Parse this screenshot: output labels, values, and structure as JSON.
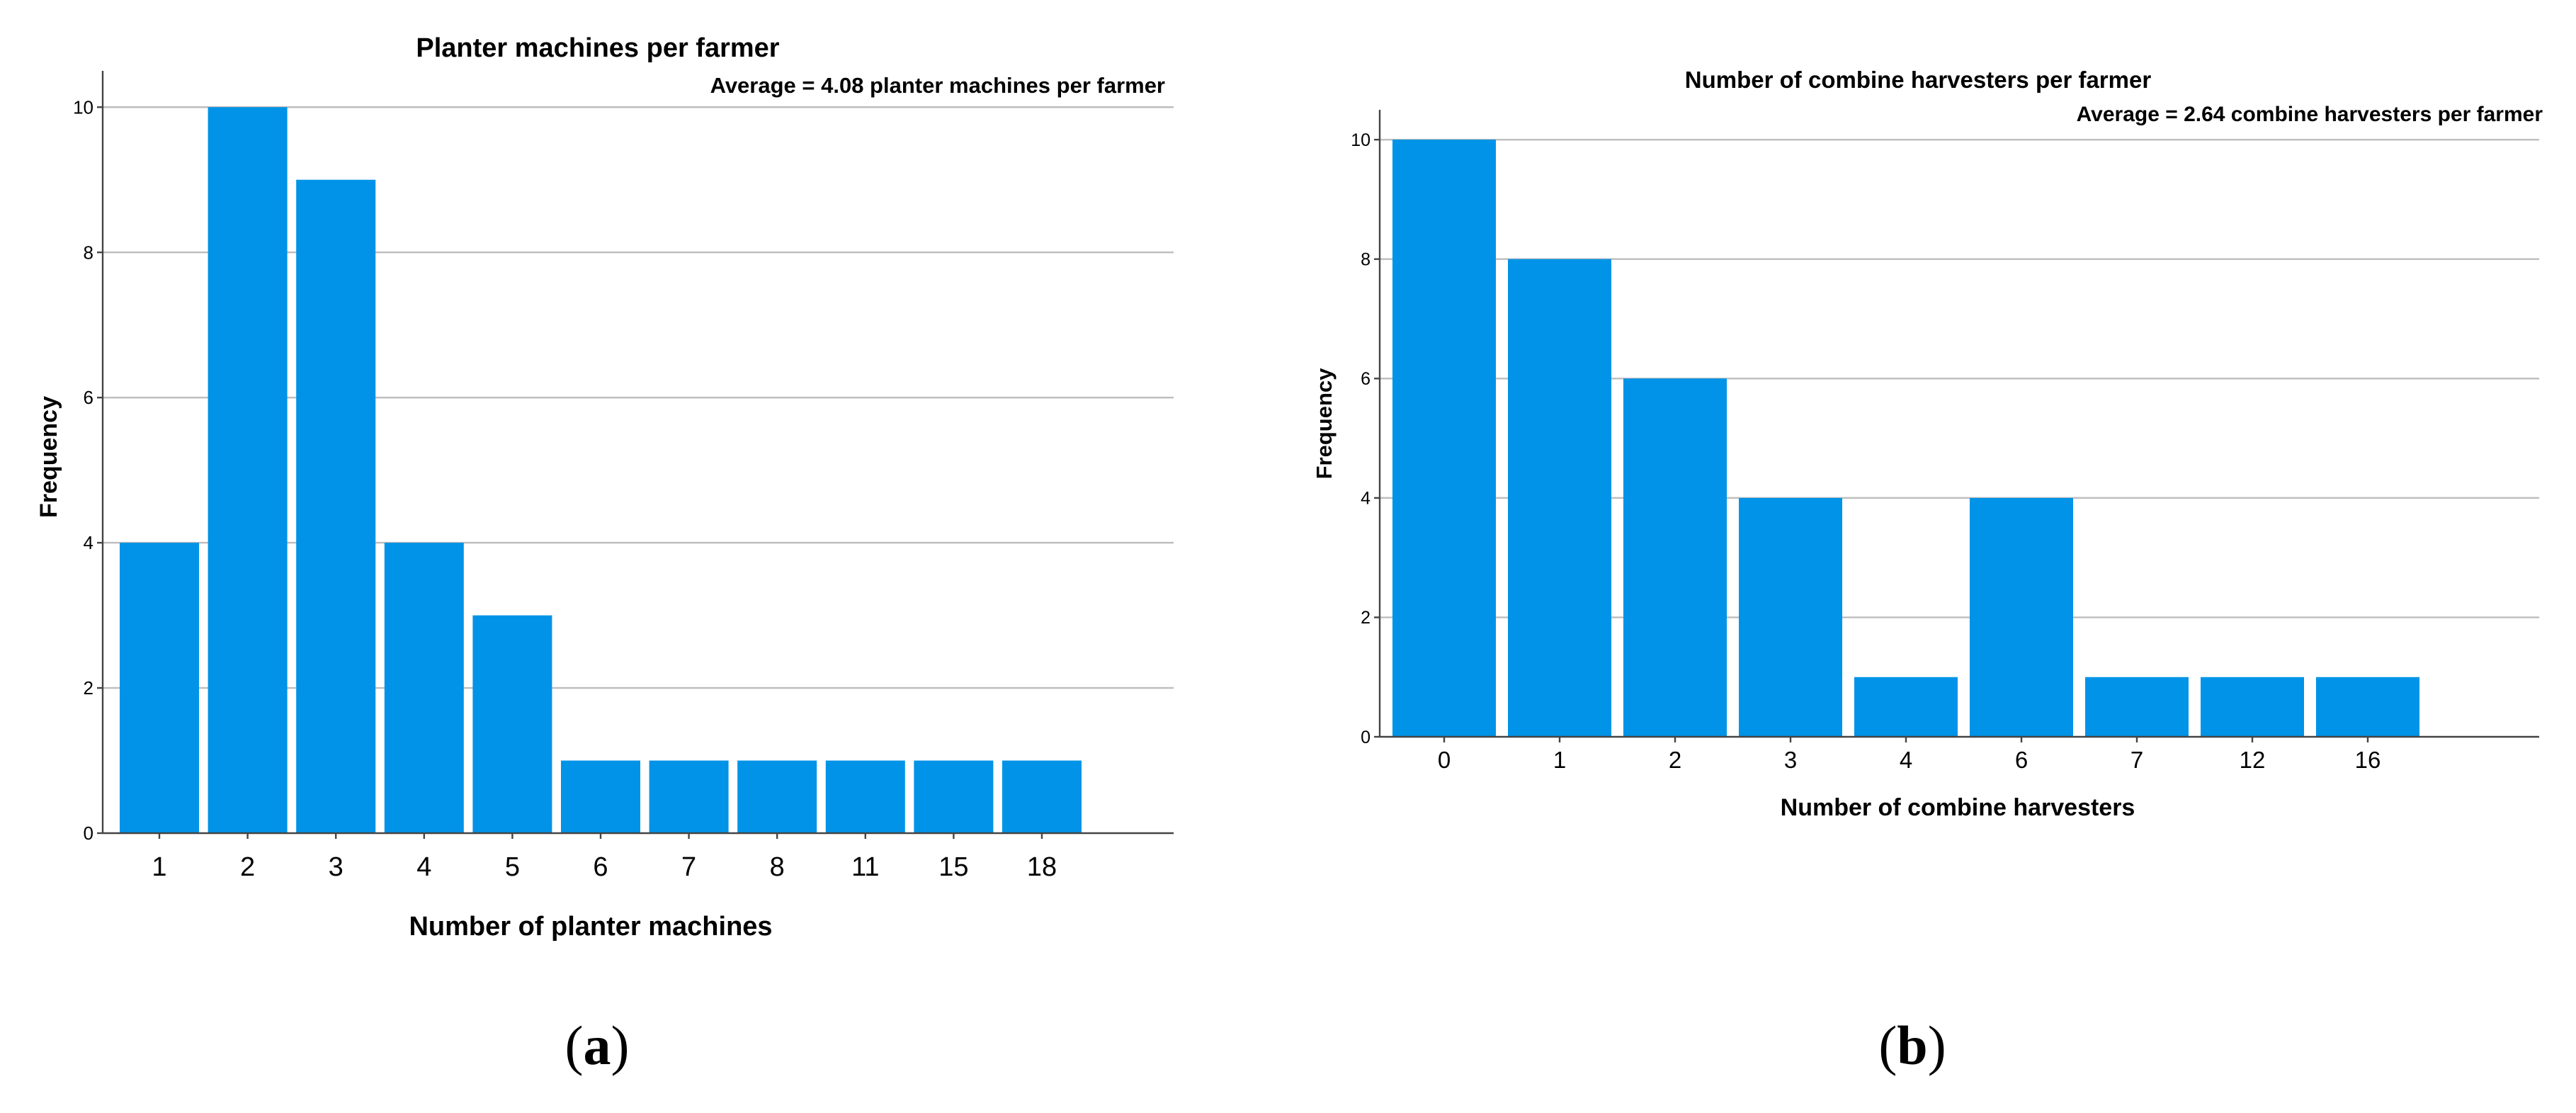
{
  "colors": {
    "bar": "#0093e7",
    "grid": "#bdbdbd",
    "axis": "#444444"
  },
  "chart_data": [
    {
      "type": "bar",
      "title": "Planter machines per farmer",
      "annotation": "Average = 4.08 planter machines per farmer",
      "xlabel": "Number of planter machines",
      "ylabel": "Frequency",
      "categories": [
        "1",
        "2",
        "3",
        "4",
        "5",
        "6",
        "7",
        "8",
        "11",
        "15",
        "18"
      ],
      "values": [
        4,
        10,
        9,
        4,
        3,
        1,
        1,
        1,
        1,
        1,
        1
      ],
      "ylim": [
        0,
        10.5
      ],
      "yticks": [
        "0",
        "2",
        "4",
        "6",
        "8",
        "10"
      ],
      "grid": true,
      "panel_label": {
        "open": "(",
        "letter": "a",
        "close": ")"
      }
    },
    {
      "type": "bar",
      "title": "Number of combine harvesters per farmer",
      "annotation": "Average = 2.64 combine harvesters per farmer",
      "xlabel": "Number of combine harvesters",
      "ylabel": "Frequency",
      "categories": [
        "0",
        "1",
        "2",
        "3",
        "4",
        "6",
        "7",
        "12",
        "16"
      ],
      "values": [
        10,
        8,
        6,
        4,
        1,
        4,
        1,
        1,
        1
      ],
      "ylim": [
        0,
        10.5
      ],
      "yticks": [
        "0",
        "2",
        "4",
        "6",
        "8",
        "10"
      ],
      "grid": true,
      "panel_label": {
        "open": "(",
        "letter": "b",
        "close": ")"
      }
    }
  ]
}
